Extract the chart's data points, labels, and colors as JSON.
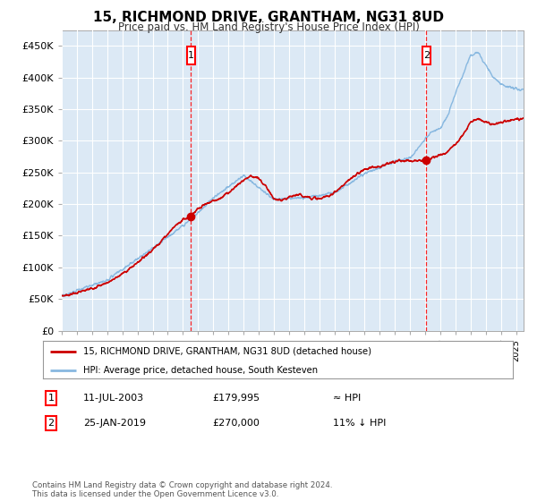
{
  "title": "15, RICHMOND DRIVE, GRANTHAM, NG31 8UD",
  "subtitle": "Price paid vs. HM Land Registry's House Price Index (HPI)",
  "ylim": [
    0,
    475000
  ],
  "xlim_start": 1995.0,
  "xlim_end": 2025.5,
  "plot_bg": "#dce9f5",
  "grid_color": "#ffffff",
  "sale1_date": 2003.53,
  "sale1_price": 179995,
  "sale2_date": 2019.07,
  "sale2_price": 270000,
  "legend_line1": "15, RICHMOND DRIVE, GRANTHAM, NG31 8UD (detached house)",
  "legend_line2": "HPI: Average price, detached house, South Kesteven",
  "annotation1": [
    "1",
    "11-JUL-2003",
    "£179,995",
    "≈ HPI"
  ],
  "annotation2": [
    "2",
    "25-JAN-2019",
    "£270,000",
    "11% ↓ HPI"
  ],
  "footer": "Contains HM Land Registry data © Crown copyright and database right 2024.\nThis data is licensed under the Open Government Licence v3.0.",
  "red_color": "#cc0000",
  "blue_color": "#88b8e0",
  "red_key_years": [
    1995.0,
    1995.5,
    1996.0,
    1996.5,
    1997.0,
    1997.5,
    1998.0,
    1998.5,
    1999.0,
    1999.5,
    2000.0,
    2000.5,
    2001.0,
    2001.5,
    2002.0,
    2002.5,
    2003.0,
    2003.53,
    2004.0,
    2004.5,
    2005.0,
    2005.5,
    2006.0,
    2006.5,
    2007.0,
    2007.5,
    2008.0,
    2008.5,
    2009.0,
    2009.5,
    2010.0,
    2010.5,
    2011.0,
    2011.5,
    2012.0,
    2012.5,
    2013.0,
    2013.5,
    2014.0,
    2014.5,
    2015.0,
    2015.5,
    2016.0,
    2016.5,
    2017.0,
    2017.5,
    2018.0,
    2018.5,
    2019.07,
    2019.5,
    2020.0,
    2020.5,
    2021.0,
    2021.5,
    2022.0,
    2022.5,
    2023.0,
    2023.5,
    2024.0,
    2024.5,
    2025.3
  ],
  "red_key_vals": [
    55000,
    57000,
    60000,
    63000,
    67000,
    71000,
    76000,
    82000,
    90000,
    98000,
    108000,
    118000,
    128000,
    140000,
    153000,
    166000,
    176000,
    179995,
    192000,
    200000,
    205000,
    210000,
    218000,
    228000,
    238000,
    245000,
    240000,
    228000,
    208000,
    205000,
    210000,
    215000,
    213000,
    210000,
    208000,
    212000,
    218000,
    228000,
    238000,
    248000,
    255000,
    258000,
    260000,
    263000,
    267000,
    268000,
    269000,
    269000,
    270000,
    273000,
    278000,
    283000,
    295000,
    310000,
    330000,
    335000,
    330000,
    325000,
    330000,
    332000,
    335000
  ],
  "blue_key_years": [
    1995.0,
    1998.0,
    2001.0,
    2003.53,
    2005.0,
    2007.0,
    2009.0,
    2011.0,
    2013.0,
    2015.0,
    2017.0,
    2018.0,
    2019.07,
    2019.5,
    2020.0,
    2020.5,
    2021.0,
    2021.5,
    2022.0,
    2022.5,
    2023.0,
    2023.5,
    2024.0,
    2024.5,
    2025.3
  ],
  "blue_key_vals": [
    55000,
    80000,
    130000,
    175000,
    210000,
    245000,
    208000,
    210000,
    218000,
    248000,
    268000,
    272000,
    305000,
    315000,
    320000,
    340000,
    375000,
    405000,
    435000,
    440000,
    420000,
    400000,
    390000,
    385000,
    380000
  ]
}
